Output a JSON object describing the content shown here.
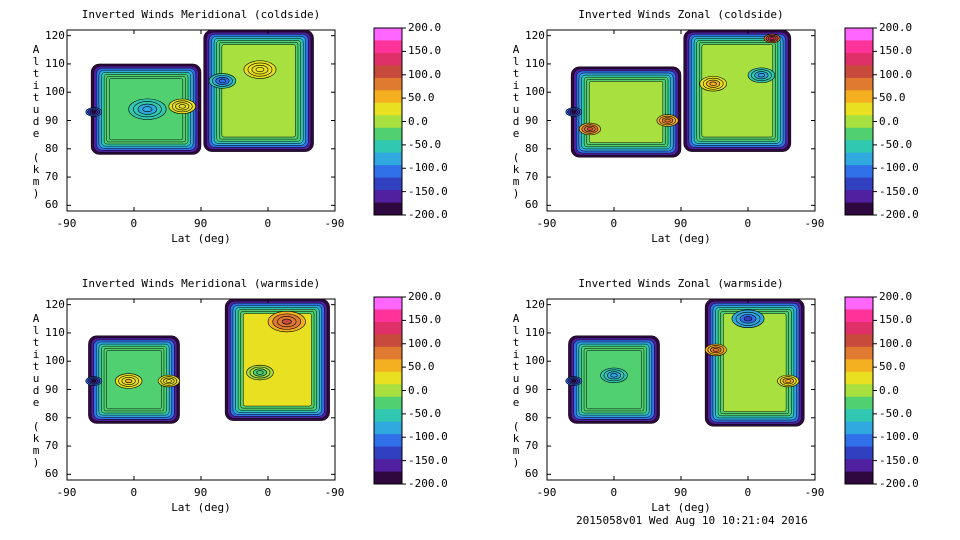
{
  "footer": "2015058v01 Wed Aug 10 10:21:04 2016",
  "chart_data": [
    {
      "type": "heatmap",
      "title": "Inverted Winds Meridional (coldside)",
      "xlabel": "Lat (deg)",
      "ylabel": "Altitude (km)",
      "x_ticks": [
        "-90",
        "0",
        "90",
        "0",
        "-90"
      ],
      "y_ticks": [
        60,
        70,
        80,
        90,
        100,
        110,
        120
      ],
      "ylim": [
        58,
        122
      ],
      "colorbar": {
        "min": -200,
        "max": 200,
        "ticks": [
          "200.0",
          "150.0",
          "100.0",
          "50.0",
          "0.0",
          "-50.0",
          "-100.0",
          "-150.0",
          "-200.0"
        ]
      },
      "regions": [
        {
          "x0": 0.09,
          "x1": 0.5,
          "y0": 78,
          "y1": 110,
          "base": -20
        },
        {
          "x0": 0.51,
          "x1": 0.92,
          "y0": 79,
          "y1": 122,
          "base": 10
        }
      ],
      "features": [
        {
          "x": 0.3,
          "y": 94,
          "value": -90,
          "r": 0.07
        },
        {
          "x": 0.43,
          "y": 95,
          "value": 40,
          "r": 0.05
        },
        {
          "x": 0.58,
          "y": 104,
          "value": -120,
          "r": 0.05
        },
        {
          "x": 0.72,
          "y": 108,
          "value": 40,
          "r": 0.06
        },
        {
          "x": 0.1,
          "y": 93,
          "value": -200,
          "r": 0.03
        }
      ]
    },
    {
      "type": "heatmap",
      "title": "Inverted Winds Zonal (coldside)",
      "xlabel": "Lat (deg)",
      "ylabel": "Altitude (km)",
      "x_ticks": [
        "-90",
        "0",
        "90",
        "0",
        "-90"
      ],
      "y_ticks": [
        60,
        70,
        80,
        90,
        100,
        110,
        120
      ],
      "ylim": [
        58,
        122
      ],
      "colorbar": {
        "min": -200,
        "max": 200,
        "ticks": [
          "200.0",
          "150.0",
          "100.0",
          "50.0",
          "0.0",
          "-50.0",
          "-100.0",
          "-150.0",
          "-200.0"
        ]
      },
      "regions": [
        {
          "x0": 0.09,
          "x1": 0.5,
          "y0": 77,
          "y1": 109,
          "base": -10
        },
        {
          "x0": 0.51,
          "x1": 0.91,
          "y0": 79,
          "y1": 122,
          "base": 5
        }
      ],
      "features": [
        {
          "x": 0.16,
          "y": 87,
          "value": 110,
          "r": 0.04
        },
        {
          "x": 0.45,
          "y": 90,
          "value": 90,
          "r": 0.04
        },
        {
          "x": 0.62,
          "y": 103,
          "value": 60,
          "r": 0.05
        },
        {
          "x": 0.8,
          "y": 106,
          "value": -90,
          "r": 0.05
        },
        {
          "x": 0.84,
          "y": 119,
          "value": 150,
          "r": 0.03
        },
        {
          "x": 0.1,
          "y": 93,
          "value": -200,
          "r": 0.03
        }
      ]
    },
    {
      "type": "heatmap",
      "title": "Inverted Winds Meridional (warmside)",
      "xlabel": "Lat (deg)",
      "ylabel": "Altitude (km)",
      "x_ticks": [
        "-90",
        "0",
        "90",
        "0",
        "-90"
      ],
      "y_ticks": [
        60,
        70,
        80,
        90,
        100,
        110,
        120
      ],
      "ylim": [
        58,
        122
      ],
      "colorbar": {
        "min": -200,
        "max": 200,
        "ticks": [
          "200.0",
          "150.0",
          "100.0",
          "50.0",
          "0.0",
          "-50.0",
          "-100.0",
          "-150.0",
          "-200.0"
        ]
      },
      "regions": [
        {
          "x0": 0.08,
          "x1": 0.42,
          "y0": 78,
          "y1": 109,
          "base": -20
        },
        {
          "x0": 0.59,
          "x1": 0.98,
          "y0": 79,
          "y1": 122,
          "base": 15
        }
      ],
      "features": [
        {
          "x": 0.23,
          "y": 93,
          "value": 50,
          "r": 0.05
        },
        {
          "x": 0.38,
          "y": 93,
          "value": 40,
          "r": 0.04
        },
        {
          "x": 0.82,
          "y": 114,
          "value": 110,
          "r": 0.07
        },
        {
          "x": 0.72,
          "y": 96,
          "value": -20,
          "r": 0.05
        },
        {
          "x": 0.1,
          "y": 93,
          "value": -200,
          "r": 0.03
        }
      ]
    },
    {
      "type": "heatmap",
      "title": "Inverted Winds Zonal (warmside)",
      "xlabel": "Lat (deg)",
      "ylabel": "Altitude (km)",
      "x_ticks": [
        "-90",
        "0",
        "90",
        "0",
        "-90"
      ],
      "y_ticks": [
        60,
        70,
        80,
        90,
        100,
        110,
        120
      ],
      "ylim": [
        58,
        122
      ],
      "colorbar": {
        "min": -200,
        "max": 200,
        "ticks": [
          "200.0",
          "150.0",
          "100.0",
          "50.0",
          "0.0",
          "-50.0",
          "-100.0",
          "-150.0",
          "-200.0"
        ]
      },
      "regions": [
        {
          "x0": 0.08,
          "x1": 0.42,
          "y0": 78,
          "y1": 109,
          "base": -40
        },
        {
          "x0": 0.59,
          "x1": 0.96,
          "y0": 77,
          "y1": 122,
          "base": -10
        }
      ],
      "features": [
        {
          "x": 0.25,
          "y": 95,
          "value": -90,
          "r": 0.05
        },
        {
          "x": 0.63,
          "y": 104,
          "value": 100,
          "r": 0.04
        },
        {
          "x": 0.75,
          "y": 115,
          "value": -140,
          "r": 0.06
        },
        {
          "x": 0.9,
          "y": 93,
          "value": 60,
          "r": 0.04
        },
        {
          "x": 0.1,
          "y": 93,
          "value": -200,
          "r": 0.03
        }
      ]
    }
  ]
}
